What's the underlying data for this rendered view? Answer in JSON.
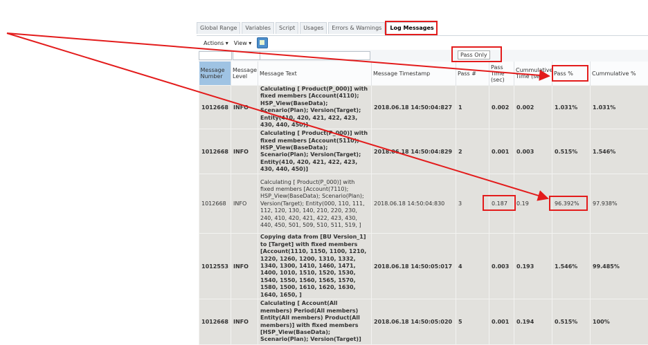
{
  "tabs": [
    "Global Range",
    "Variables",
    "Script",
    "Usages",
    "Errors & Warnings",
    "Log Messages"
  ],
  "active_tab": "Log Messages",
  "toolbar": {
    "actions": "Actions ▾",
    "view": "View ▾",
    "icon": "query-filter-icon"
  },
  "filter": {
    "pass_only": "Pass Only"
  },
  "columns": [
    "Message Number",
    "Message Level",
    "Message Text",
    "Message Timestamp",
    "Pass #",
    "Pass Time (sec)",
    "Cummulative Time (sec)",
    "Pass %",
    "Cummulative %"
  ],
  "rows": [
    {
      "number": "1012668",
      "level": "INFO",
      "text": "Calculating [ Product(P_000)] with fixed members [Account(4110); HSP_View(BaseData); Scenario(Plan); Version(Target); Entity(410, 420, 421, 422, 423, 430, 440, 450)]",
      "timestamp": "2018.06.18 14:50:04:827",
      "pass": "1",
      "pass_time": "0.002",
      "cum_time": "0.002",
      "pass_pct": "1.031%",
      "cum_pct": "1.031%"
    },
    {
      "number": "1012668",
      "level": "INFO",
      "text": "Calculating [ Product(P_000)] with fixed members [Account(5110); HSP_View(BaseData); Scenario(Plan); Version(Target); Entity(410, 420, 421, 422, 423, 430, 440, 450)]",
      "timestamp": "2018.06.18 14:50:04:829",
      "pass": "2",
      "pass_time": "0.001",
      "cum_time": "0.003",
      "pass_pct": "0.515%",
      "cum_pct": "1.546%"
    },
    {
      "number": "1012668",
      "level": "INFO",
      "text": "Calculating [ Product(P_000)] with fixed members [Account(7110); HSP_View(BaseData); Scenario(Plan); Version(Target); Entity(000, 110, 111, 112, 120, 130, 140, 210, 220, 230, 240, 410, 420, 421, 422, 423, 430, 440, 450, 501, 509, 510, 511, 519, ]",
      "timestamp": "2018.06.18 14:50:04:830",
      "pass": "3",
      "pass_time": "0.187",
      "cum_time": "0.19",
      "pass_pct": "96.392%",
      "cum_pct": "97.938%"
    },
    {
      "number": "1012553",
      "level": "INFO",
      "text": "Copying data from [BU Version_1] to [Target] with fixed members [Account(1110, 1150, 1100, 1210, 1220, 1260, 1200, 1310, 1332, 1340, 1300, 1410, 1460, 1471, 1400, 1010, 1510, 1520, 1530, 1540, 1550, 1560, 1565, 1570, 1580, 1500, 1610, 1620, 1630, 1640, 1650, ]",
      "timestamp": "2018.06.18 14:50:05:017",
      "pass": "4",
      "pass_time": "0.003",
      "cum_time": "0.193",
      "pass_pct": "1.546%",
      "cum_pct": "99.485%"
    },
    {
      "number": "1012668",
      "level": "INFO",
      "text": "Calculating [ Account(All members) Period(All members) Entity(All members) Product(All members)] with fixed members [HSP_View(BaseData); Scenario(Plan); Version(Target)]",
      "timestamp": "2018.06.18 14:50:05:020",
      "pass": "5",
      "pass_time": "0.001",
      "cum_time": "0.194",
      "pass_pct": "0.515%",
      "cum_pct": "100%"
    }
  ],
  "annotation_color": "#e31b1b"
}
